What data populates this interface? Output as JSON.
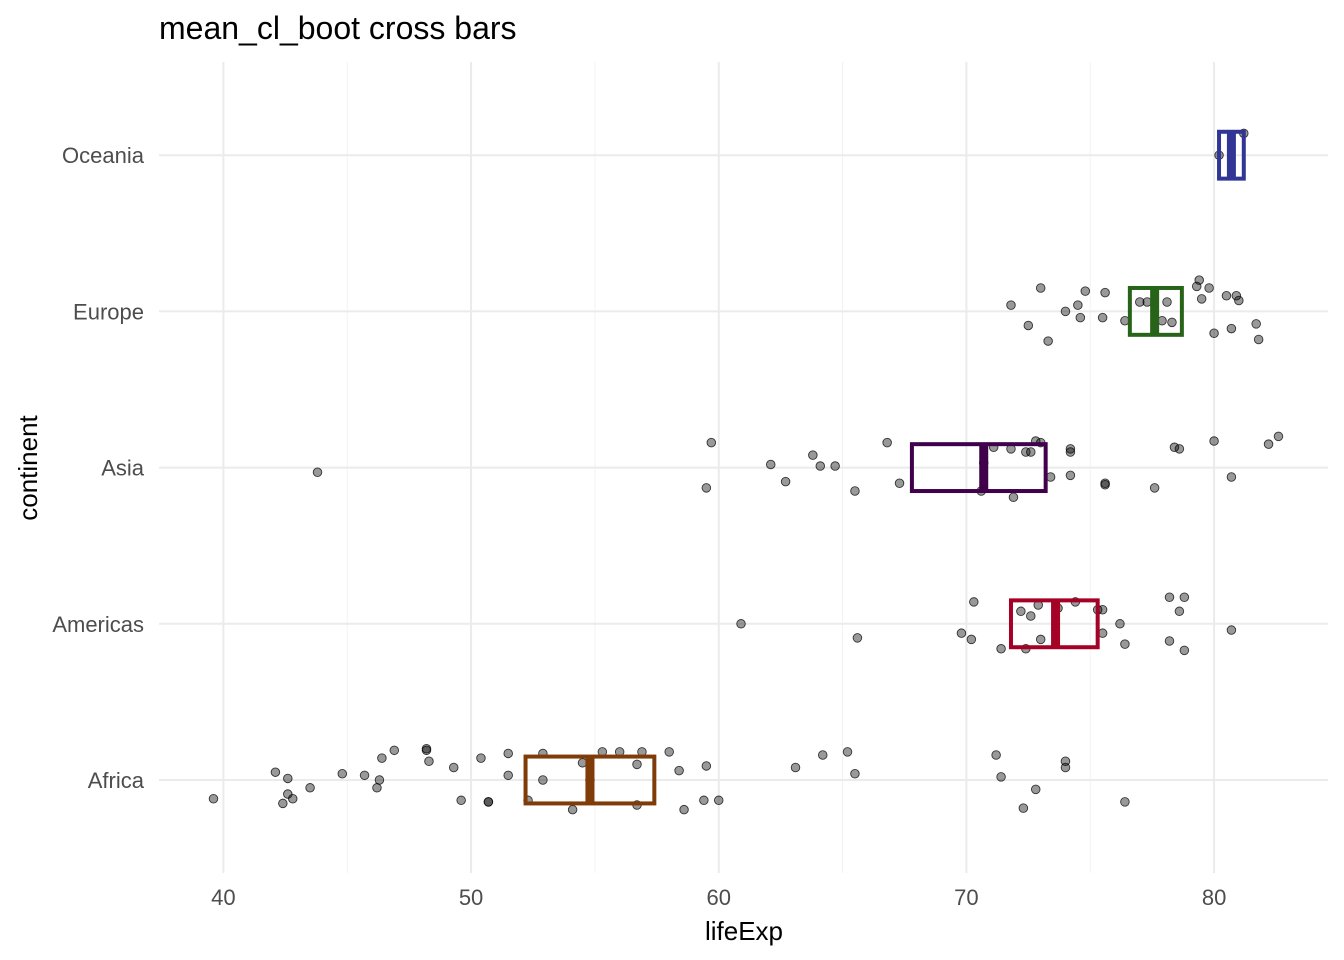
{
  "chart_data": {
    "type": "scatter",
    "title": "mean_cl_boot cross bars",
    "xlabel": "lifeExp",
    "ylabel": "continent",
    "xlim": [
      37.4,
      84.6
    ],
    "xticks": [
      40,
      50,
      60,
      70,
      80
    ],
    "x_tick_labels": [
      "40",
      "50",
      "60",
      "70",
      "80"
    ],
    "categories": [
      "Africa",
      "Americas",
      "Asia",
      "Europe",
      "Oceania"
    ],
    "grid": true,
    "legend": "none",
    "point_color": "#000000",
    "point_alpha": 0.4,
    "crossbars": [
      {
        "category": "Africa",
        "mean": 54.8,
        "ymin": 52.2,
        "ymax": 57.4,
        "color": "#7F3B08"
      },
      {
        "category": "Americas",
        "mean": 73.6,
        "ymin": 71.8,
        "ymax": 75.3,
        "color": "#A50026"
      },
      {
        "category": "Asia",
        "mean": 70.7,
        "ymin": 67.8,
        "ymax": 73.2,
        "color": "#40004B"
      },
      {
        "category": "Europe",
        "mean": 77.6,
        "ymin": 76.6,
        "ymax": 78.7,
        "color": "#276419"
      },
      {
        "category": "Oceania",
        "mean": 80.7,
        "ymin": 80.2,
        "ymax": 81.2,
        "color": "#313695"
      }
    ],
    "series": [
      {
        "category": "Africa",
        "points": [
          [
            39.6,
            -0.12
          ],
          [
            42.1,
            0.05
          ],
          [
            42.4,
            -0.15
          ],
          [
            42.6,
            0.01
          ],
          [
            42.6,
            -0.09
          ],
          [
            42.8,
            -0.12
          ],
          [
            43.5,
            -0.05
          ],
          [
            44.8,
            0.04
          ],
          [
            45.7,
            0.03
          ],
          [
            46.2,
            -0.05
          ],
          [
            46.3,
            0.0
          ],
          [
            46.4,
            0.14
          ],
          [
            46.9,
            0.19
          ],
          [
            48.2,
            0.2
          ],
          [
            48.3,
            0.12
          ],
          [
            48.2,
            0.19
          ],
          [
            49.3,
            0.08
          ],
          [
            49.6,
            -0.13
          ],
          [
            50.4,
            0.14
          ],
          [
            50.7,
            -0.14
          ],
          [
            50.7,
            -0.14
          ],
          [
            51.5,
            0.17
          ],
          [
            51.5,
            0.03
          ],
          [
            52.3,
            -0.13
          ],
          [
            52.9,
            0.0
          ],
          [
            52.9,
            0.17
          ],
          [
            54.1,
            -0.19
          ],
          [
            54.5,
            0.11
          ],
          [
            54.8,
            0.0
          ],
          [
            55.3,
            0.18
          ],
          [
            56.0,
            0.18
          ],
          [
            56.7,
            -0.16
          ],
          [
            56.7,
            0.1
          ],
          [
            56.9,
            0.18
          ],
          [
            58.0,
            0.18
          ],
          [
            58.4,
            0.06
          ],
          [
            58.6,
            -0.19
          ],
          [
            59.4,
            -0.13
          ],
          [
            59.5,
            0.09
          ],
          [
            60.0,
            -0.13
          ],
          [
            63.1,
            0.08
          ],
          [
            64.2,
            0.16
          ],
          [
            65.2,
            0.18
          ],
          [
            65.5,
            0.04
          ],
          [
            71.2,
            0.16
          ],
          [
            71.4,
            0.02
          ],
          [
            72.3,
            -0.18
          ],
          [
            72.8,
            -0.06
          ],
          [
            74.0,
            0.12
          ],
          [
            74.0,
            0.08
          ],
          [
            76.4,
            -0.14
          ]
        ]
      },
      {
        "category": "Americas",
        "points": [
          [
            60.9,
            0.0
          ],
          [
            65.6,
            -0.09
          ],
          [
            69.8,
            -0.06
          ],
          [
            70.2,
            -0.1
          ],
          [
            70.3,
            0.14
          ],
          [
            71.4,
            -0.16
          ],
          [
            72.2,
            0.08
          ],
          [
            72.4,
            -0.16
          ],
          [
            72.6,
            0.05
          ],
          [
            72.9,
            0.12
          ],
          [
            73.0,
            -0.1
          ],
          [
            73.7,
            0.1
          ],
          [
            74.4,
            0.14
          ],
          [
            75.3,
            0.09
          ],
          [
            75.5,
            0.09
          ],
          [
            75.5,
            -0.06
          ],
          [
            76.2,
            0.0
          ],
          [
            76.4,
            -0.13
          ],
          [
            78.2,
            0.17
          ],
          [
            78.2,
            -0.11
          ],
          [
            78.6,
            0.08
          ],
          [
            78.8,
            0.17
          ],
          [
            78.8,
            -0.17
          ],
          [
            80.7,
            -0.04
          ]
        ]
      },
      {
        "category": "Asia",
        "points": [
          [
            43.8,
            -0.03
          ],
          [
            59.5,
            -0.13
          ],
          [
            59.7,
            0.16
          ],
          [
            62.1,
            0.02
          ],
          [
            62.7,
            -0.09
          ],
          [
            63.8,
            0.08
          ],
          [
            64.1,
            0.01
          ],
          [
            64.7,
            0.01
          ],
          [
            65.5,
            -0.15
          ],
          [
            66.8,
            0.16
          ],
          [
            67.3,
            -0.1
          ],
          [
            70.6,
            -0.15
          ],
          [
            70.7,
            0.03
          ],
          [
            71.1,
            0.13
          ],
          [
            71.8,
            0.12
          ],
          [
            71.9,
            -0.19
          ],
          [
            72.4,
            0.1
          ],
          [
            72.6,
            0.1
          ],
          [
            72.8,
            0.17
          ],
          [
            73.0,
            0.16
          ],
          [
            73.4,
            -0.06
          ],
          [
            74.2,
            0.12
          ],
          [
            74.2,
            0.1
          ],
          [
            74.2,
            -0.05
          ],
          [
            75.6,
            -0.1
          ],
          [
            75.6,
            -0.11
          ],
          [
            77.6,
            -0.13
          ],
          [
            78.4,
            0.13
          ],
          [
            78.6,
            0.12
          ],
          [
            80.0,
            0.17
          ],
          [
            80.7,
            -0.06
          ],
          [
            82.2,
            0.15
          ],
          [
            82.6,
            0.2
          ]
        ]
      },
      {
        "category": "Europe",
        "points": [
          [
            71.8,
            0.04
          ],
          [
            72.5,
            -0.09
          ],
          [
            73.0,
            0.15
          ],
          [
            73.3,
            -0.19
          ],
          [
            74.0,
            0.0
          ],
          [
            74.5,
            0.04
          ],
          [
            74.6,
            -0.04
          ],
          [
            74.8,
            0.13
          ],
          [
            75.5,
            -0.04
          ],
          [
            75.6,
            0.12
          ],
          [
            76.4,
            -0.06
          ],
          [
            77.0,
            0.06
          ],
          [
            77.3,
            0.06
          ],
          [
            77.9,
            -0.06
          ],
          [
            78.1,
            0.06
          ],
          [
            78.3,
            -0.07
          ],
          [
            79.3,
            0.16
          ],
          [
            79.4,
            0.2
          ],
          [
            79.5,
            0.08
          ],
          [
            79.8,
            0.15
          ],
          [
            80.0,
            -0.14
          ],
          [
            80.5,
            0.1
          ],
          [
            80.7,
            -0.11
          ],
          [
            80.9,
            0.1
          ],
          [
            81.0,
            0.07
          ],
          [
            81.7,
            -0.08
          ],
          [
            81.8,
            -0.18
          ]
        ]
      },
      {
        "category": "Oceania",
        "points": [
          [
            80.2,
            0.0
          ],
          [
            81.2,
            0.14
          ]
        ]
      }
    ]
  }
}
